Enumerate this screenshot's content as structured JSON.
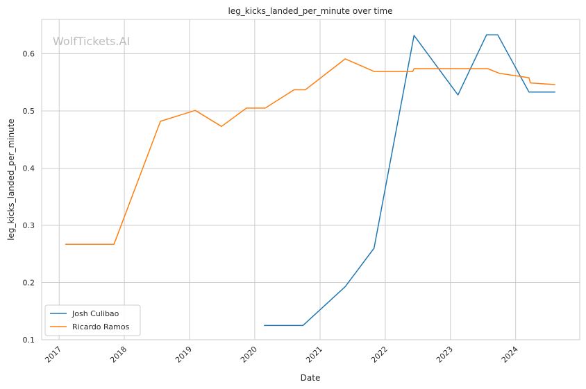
{
  "watermark": "WolfTickets.AI",
  "chart_data": {
    "type": "line",
    "title": "leg_kicks_landed_per_minute over time",
    "xlabel": "Date",
    "ylabel": "leg_kicks_landed_per_minute",
    "x_ticks": [
      "2017",
      "2018",
      "2019",
      "2020",
      "2021",
      "2022",
      "2023",
      "2024"
    ],
    "y_ticks": [
      "0.1",
      "0.2",
      "0.3",
      "0.4",
      "0.5",
      "0.6"
    ],
    "xlim": [
      "2016-09-25",
      "2024-12-25"
    ],
    "ylim": [
      0.1,
      0.66
    ],
    "grid": true,
    "legend_position": "lower-left",
    "series": [
      {
        "name": "Josh Culibao",
        "color": "#1f77b4",
        "points": [
          [
            "2020-02-22",
            0.125
          ],
          [
            "2020-09-27",
            0.125
          ],
          [
            "2021-05-22",
            0.193
          ],
          [
            "2021-10-30",
            0.26
          ],
          [
            "2022-06-11",
            0.632
          ],
          [
            "2023-02-12",
            0.528
          ],
          [
            "2023-07-22",
            0.633
          ],
          [
            "2023-09-23",
            0.633
          ],
          [
            "2024-03-16",
            0.533
          ],
          [
            "2024-08-10",
            0.533
          ]
        ]
      },
      {
        "name": "Ricardo Ramos",
        "color": "#ff7f0e",
        "points": [
          [
            "2017-02-04",
            0.267
          ],
          [
            "2017-11-04",
            0.267
          ],
          [
            "2018-07-22",
            0.482
          ],
          [
            "2019-02-02",
            0.501
          ],
          [
            "2019-06-29",
            0.473
          ],
          [
            "2019-11-16",
            0.505
          ],
          [
            "2020-02-29",
            0.505
          ],
          [
            "2020-08-08",
            0.537
          ],
          [
            "2020-10-10",
            0.537
          ],
          [
            "2021-05-22",
            0.591
          ],
          [
            "2021-10-30",
            0.569
          ],
          [
            "2022-06-04",
            0.569
          ],
          [
            "2022-06-11",
            0.574
          ],
          [
            "2023-07-29",
            0.574
          ],
          [
            "2023-09-30",
            0.566
          ],
          [
            "2024-03-16",
            0.558
          ],
          [
            "2024-03-23",
            0.549
          ],
          [
            "2024-08-10",
            0.546
          ]
        ]
      }
    ]
  }
}
